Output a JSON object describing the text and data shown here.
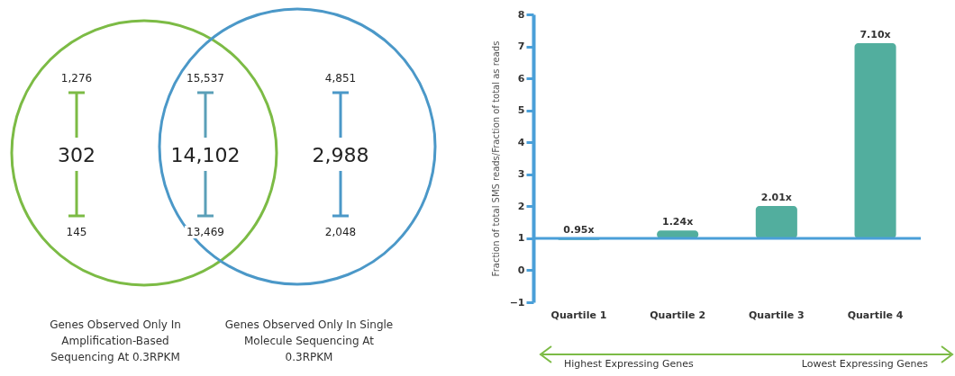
{
  "chart_data": [
    {
      "type": "other",
      "annotations": [
        "1,276",
        "302",
        "145",
        "15,537",
        "14,102",
        "13,469",
        "4,851",
        "2,988",
        "2,048",
        "Genes Observed Only In Amplification-Based Sequencing At 0.3RPKM",
        "Genes Observed Only In Single Molecule Sequencing At 0.3RPKM"
      ]
    },
    {
      "type": "bar",
      "categories": [
        "Quartile 1",
        "Quartile 2",
        "Quartile 3",
        "Quartile 4"
      ],
      "base": [
        1,
        1,
        1,
        1
      ],
      "values": [
        -0.05,
        0.24,
        1.01,
        6.1
      ],
      "value_labels": [
        "0.95x",
        "1.24x",
        "2.01x",
        "7.10x"
      ],
      "color": "#52ae9e",
      "ylabel": "Fraction of total SMS reads/Fraction of total as reads",
      "ylim": [
        -1,
        8
      ],
      "yticks": [
        -1,
        0,
        1,
        2,
        3,
        4,
        5,
        6,
        7,
        8
      ],
      "ref_lines": [
        {
          "axis": "y",
          "value": 1,
          "color": "#4a9fd8"
        }
      ],
      "grid": false,
      "annotations": [
        "Highest Expressing Genes",
        "Lowest Expressing Genes"
      ]
    }
  ]
}
